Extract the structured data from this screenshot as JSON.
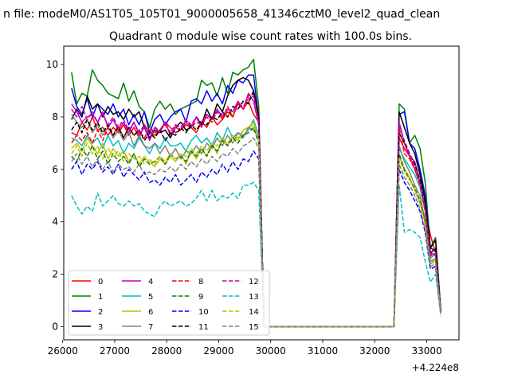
{
  "chart_data": {
    "type": "line",
    "suptitle": "n file: modeM0/AS1T05_105T01_9000005658_41346cztM0_level2_quad_clean",
    "title": "Quadrant 0 module wise count rates with 100.0s bins.",
    "xlabel": "",
    "ylabel": "",
    "x_offset_label": "+4.224e8",
    "xlim": [
      26020,
      33620
    ],
    "ylim": [
      -0.5,
      10.7
    ],
    "x_ticks": [
      {
        "value": 26000,
        "label": "26000"
      },
      {
        "value": 27000,
        "label": "27000"
      },
      {
        "value": 28000,
        "label": "28000"
      },
      {
        "value": 29000,
        "label": "29000"
      },
      {
        "value": 30000,
        "label": "30000"
      },
      {
        "value": 31000,
        "label": "31000"
      },
      {
        "value": 32000,
        "label": "32000"
      },
      {
        "value": 33000,
        "label": "33000"
      }
    ],
    "y_ticks": [
      {
        "value": 0,
        "label": "0"
      },
      {
        "value": 2,
        "label": "2"
      },
      {
        "value": 4,
        "label": "4"
      },
      {
        "value": 6,
        "label": "6"
      },
      {
        "value": 8,
        "label": "8"
      },
      {
        "value": 10,
        "label": "10"
      }
    ],
    "grid": false,
    "legend_position": "lower-left",
    "x_start": 26170,
    "x_step": 100,
    "series": [
      {
        "name": "0",
        "color": "#ff0000",
        "dash": "solid",
        "values": [
          7.4,
          7.3,
          7.8,
          7.5,
          8.0,
          7.5,
          7.6,
          7.3,
          7.6,
          7.4,
          7.7,
          7.3,
          7.6,
          7.2,
          7.7,
          7.4,
          7.3,
          7.5,
          7.8,
          7.6,
          7.4,
          7.5,
          7.7,
          7.6,
          7.4,
          7.8,
          7.6,
          8.0,
          7.7,
          7.9,
          8.2,
          8.0,
          8.5,
          8.3,
          8.6,
          8.1,
          7.8,
          0,
          0,
          0,
          0,
          0,
          0,
          0,
          0,
          0,
          0,
          0,
          0,
          0,
          0,
          0,
          0,
          0,
          0,
          0,
          0,
          0,
          0,
          0,
          0,
          0,
          0,
          7.2,
          6.8,
          6.5,
          6.0,
          5.5,
          4.5,
          3.5,
          2.8,
          0.6
        ]
      },
      {
        "name": "1",
        "color": "#008000",
        "dash": "solid",
        "values": [
          9.7,
          8.5,
          8.9,
          8.8,
          9.8,
          9.4,
          9.2,
          8.9,
          8.8,
          8.7,
          9.3,
          8.6,
          9.0,
          8.4,
          8.2,
          7.6,
          8.3,
          8.6,
          8.3,
          8.5,
          8.1,
          8.3,
          8.4,
          8.5,
          8.6,
          9.4,
          9.2,
          9.3,
          8.8,
          9.5,
          8.9,
          9.7,
          9.6,
          9.8,
          9.9,
          10.2,
          8.4,
          0,
          0,
          0,
          0,
          0,
          0,
          0,
          0,
          0,
          0,
          0,
          0,
          0,
          0,
          0,
          0,
          0,
          0,
          0,
          0,
          0,
          0,
          0,
          0,
          0,
          0,
          8.5,
          8.3,
          7.0,
          7.3,
          6.8,
          5.5,
          3.0,
          3.4,
          0.6
        ]
      },
      {
        "name": "2",
        "color": "#0000ff",
        "dash": "solid",
        "values": [
          9.1,
          8.4,
          8.1,
          8.7,
          8.0,
          8.5,
          8.3,
          8.1,
          8.5,
          8.0,
          8.3,
          7.7,
          8.1,
          7.7,
          8.2,
          7.4,
          7.9,
          8.1,
          7.7,
          8.0,
          8.2,
          8.3,
          7.8,
          8.6,
          8.7,
          8.5,
          9.0,
          8.6,
          8.9,
          8.5,
          9.2,
          8.9,
          9.4,
          9.3,
          9.6,
          9.6,
          7.9,
          0,
          0,
          0,
          0,
          0,
          0,
          0,
          0,
          0,
          0,
          0,
          0,
          0,
          0,
          0,
          0,
          0,
          0,
          0,
          0,
          0,
          0,
          0,
          0,
          0,
          0,
          8.1,
          8.2,
          7.0,
          6.8,
          6.0,
          5.0,
          3.0,
          2.9,
          0.5
        ]
      },
      {
        "name": "3",
        "color": "#000000",
        "dash": "solid",
        "values": [
          7.9,
          8.3,
          8.0,
          8.8,
          8.3,
          8.5,
          8.0,
          8.4,
          8.1,
          8.2,
          7.9,
          8.3,
          8.0,
          8.2,
          7.6,
          7.2,
          7.5,
          7.4,
          7.5,
          7.2,
          7.6,
          7.8,
          7.5,
          7.6,
          8.0,
          7.7,
          8.3,
          7.9,
          8.5,
          8.2,
          8.8,
          9.2,
          9.4,
          9.5,
          9.4,
          9.0,
          8.1,
          0,
          0,
          0,
          0,
          0,
          0,
          0,
          0,
          0,
          0,
          0,
          0,
          0,
          0,
          0,
          0,
          0,
          0,
          0,
          0,
          0,
          0,
          0,
          0,
          0,
          0,
          8.2,
          7.6,
          7.0,
          6.6,
          5.8,
          4.8,
          3.0,
          3.3,
          0.6
        ]
      },
      {
        "name": "4",
        "color": "#bf00bf",
        "dash": "solid",
        "values": [
          8.5,
          8.2,
          7.8,
          8.0,
          8.1,
          7.8,
          8.2,
          7.6,
          7.9,
          7.5,
          7.8,
          7.4,
          7.8,
          7.3,
          7.6,
          7.1,
          7.6,
          7.4,
          7.8,
          7.3,
          7.6,
          7.5,
          7.8,
          7.6,
          8.0,
          7.6,
          8.1,
          7.9,
          8.3,
          8.0,
          8.3,
          8.2,
          8.6,
          8.3,
          8.9,
          8.6,
          7.7,
          0,
          0,
          0,
          0,
          0,
          0,
          0,
          0,
          0,
          0,
          0,
          0,
          0,
          0,
          0,
          0,
          0,
          0,
          0,
          0,
          0,
          0,
          0,
          0,
          0,
          0,
          7.8,
          7.0,
          6.5,
          6.3,
          5.5,
          4.5,
          2.8,
          2.7,
          0.6
        ]
      },
      {
        "name": "5",
        "color": "#00bfbf",
        "dash": "solid",
        "values": [
          7.2,
          7.1,
          6.9,
          7.3,
          7.0,
          7.2,
          6.8,
          7.3,
          6.9,
          7.1,
          6.6,
          7.0,
          6.8,
          7.2,
          6.9,
          6.6,
          7.0,
          6.8,
          7.2,
          6.9,
          6.9,
          7.0,
          6.7,
          7.1,
          7.3,
          7.0,
          7.2,
          6.9,
          7.4,
          7.1,
          7.6,
          7.2,
          7.4,
          7.3,
          7.5,
          7.9,
          7.3,
          0,
          0,
          0,
          0,
          0,
          0,
          0,
          0,
          0,
          0,
          0,
          0,
          0,
          0,
          0,
          0,
          0,
          0,
          0,
          0,
          0,
          0,
          0,
          0,
          0,
          0,
          6.8,
          6.4,
          6.1,
          5.8,
          5.3,
          4.4,
          2.6,
          2.8,
          0.5
        ]
      },
      {
        "name": "6",
        "color": "#bfbf00",
        "dash": "solid",
        "values": [
          6.8,
          7.0,
          6.7,
          7.2,
          6.9,
          6.6,
          7.0,
          6.4,
          6.8,
          6.5,
          6.7,
          6.3,
          6.6,
          6.2,
          6.5,
          6.3,
          6.1,
          6.4,
          6.2,
          6.5,
          6.3,
          6.6,
          6.2,
          6.7,
          6.4,
          6.8,
          6.5,
          7.0,
          6.6,
          7.2,
          6.9,
          7.3,
          7.1,
          7.5,
          7.6,
          7.8,
          7.1,
          0,
          0,
          0,
          0,
          0,
          0,
          0,
          0,
          0,
          0,
          0,
          0,
          0,
          0,
          0,
          0,
          0,
          0,
          0,
          0,
          0,
          0,
          0,
          0,
          0,
          0,
          6.5,
          6.0,
          5.7,
          5.2,
          4.7,
          4.2,
          2.4,
          2.6,
          0.5
        ]
      },
      {
        "name": "7",
        "color": "#808080",
        "dash": "solid",
        "values": [
          8.1,
          7.8,
          7.6,
          7.9,
          7.4,
          7.7,
          7.3,
          7.6,
          7.2,
          7.5,
          7.1,
          7.4,
          6.9,
          7.3,
          6.9,
          6.8,
          7.0,
          6.6,
          6.9,
          6.5,
          6.8,
          6.4,
          6.7,
          6.6,
          6.9,
          6.6,
          7.0,
          6.8,
          7.2,
          6.9,
          7.3,
          7.0,
          7.4,
          7.2,
          7.6,
          7.5,
          7.2,
          0,
          0,
          0,
          0,
          0,
          0,
          0,
          0,
          0,
          0,
          0,
          0,
          0,
          0,
          0,
          0,
          0,
          0,
          0,
          0,
          0,
          0,
          0,
          0,
          0,
          0,
          6.9,
          6.3,
          5.9,
          5.4,
          5.0,
          4.0,
          2.5,
          2.6,
          0.5
        ]
      },
      {
        "name": "8",
        "color": "#ff0000",
        "dash": "dashed",
        "values": [
          7.0,
          7.3,
          7.1,
          7.4,
          7.0,
          7.5,
          7.1,
          7.6,
          7.3,
          7.7,
          7.2,
          7.6,
          7.3,
          7.5,
          7.2,
          7.6,
          7.4,
          7.5,
          7.7,
          7.4,
          7.7,
          7.5,
          7.9,
          7.6,
          7.8,
          7.7,
          8.0,
          7.8,
          8.2,
          7.9,
          8.4,
          8.0,
          8.6,
          8.3,
          8.8,
          8.9,
          7.9,
          0,
          0,
          0,
          0,
          0,
          0,
          0,
          0,
          0,
          0,
          0,
          0,
          0,
          0,
          0,
          0,
          0,
          0,
          0,
          0,
          0,
          0,
          0,
          0,
          0,
          0,
          7.6,
          6.6,
          6.4,
          6.0,
          5.4,
          4.4,
          2.7,
          2.9,
          0.6
        ]
      },
      {
        "name": "9",
        "color": "#008000",
        "dash": "dashed",
        "values": [
          6.5,
          6.3,
          6.8,
          6.5,
          6.9,
          6.4,
          6.7,
          6.2,
          6.6,
          6.3,
          6.5,
          6.2,
          6.6,
          6.1,
          6.4,
          6.2,
          6.3,
          6.5,
          6.2,
          6.6,
          6.4,
          6.5,
          6.3,
          6.7,
          6.5,
          6.8,
          6.5,
          6.9,
          6.7,
          7.1,
          6.9,
          7.2,
          7.0,
          7.3,
          7.4,
          7.6,
          7.0,
          0,
          0,
          0,
          0,
          0,
          0,
          0,
          0,
          0,
          0,
          0,
          0,
          0,
          0,
          0,
          0,
          0,
          0,
          0,
          0,
          0,
          0,
          0,
          0,
          0,
          0,
          6.6,
          6.0,
          5.6,
          5.3,
          4.8,
          4.0,
          2.4,
          2.5,
          0.5
        ]
      },
      {
        "name": "10",
        "color": "#0000ff",
        "dash": "dashed",
        "values": [
          6.0,
          6.3,
          5.8,
          6.2,
          6.0,
          6.3,
          5.9,
          6.1,
          5.8,
          6.2,
          5.7,
          6.0,
          5.8,
          5.6,
          5.9,
          5.5,
          5.6,
          5.4,
          5.7,
          5.5,
          5.8,
          5.4,
          5.6,
          5.8,
          5.5,
          5.9,
          5.7,
          6.0,
          5.8,
          6.2,
          5.9,
          6.3,
          6.0,
          6.4,
          6.3,
          6.7,
          6.4,
          0,
          0,
          0,
          0,
          0,
          0,
          0,
          0,
          0,
          0,
          0,
          0,
          0,
          0,
          0,
          0,
          0,
          0,
          0,
          0,
          0,
          0,
          0,
          0,
          0,
          0,
          6.0,
          5.5,
          5.2,
          4.8,
          4.4,
          3.6,
          2.2,
          2.3,
          0.5
        ]
      },
      {
        "name": "11",
        "color": "#000000",
        "dash": "dashed",
        "values": [
          7.5,
          7.8,
          7.4,
          7.9,
          7.5,
          7.8,
          7.4,
          7.7,
          7.3,
          7.6,
          7.2,
          7.6,
          7.3,
          7.5,
          7.1,
          7.4,
          7.2,
          7.5,
          7.1,
          7.4,
          7.3,
          7.6,
          7.4,
          7.7,
          7.5,
          7.8,
          7.7,
          8.0,
          7.9,
          8.2,
          8.0,
          8.4,
          8.3,
          8.6,
          8.5,
          9.0,
          8.0,
          0,
          0,
          0,
          0,
          0,
          0,
          0,
          0,
          0,
          0,
          0,
          0,
          0,
          0,
          0,
          0,
          0,
          0,
          0,
          0,
          0,
          0,
          0,
          0,
          0,
          0,
          7.4,
          7.0,
          6.6,
          6.2,
          5.6,
          4.6,
          2.8,
          3.0,
          0.6
        ]
      },
      {
        "name": "12",
        "color": "#bf00bf",
        "dash": "dashed",
        "values": [
          8.3,
          8.0,
          8.4,
          7.9,
          8.2,
          7.8,
          8.1,
          7.7,
          8.0,
          7.6,
          7.9,
          7.5,
          7.8,
          7.4,
          7.7,
          7.3,
          7.6,
          7.5,
          7.8,
          7.4,
          7.7,
          7.6,
          7.9,
          7.7,
          8.0,
          7.8,
          8.1,
          7.9,
          8.2,
          8.1,
          8.3,
          8.2,
          8.5,
          8.4,
          8.7,
          8.8,
          7.8,
          0,
          0,
          0,
          0,
          0,
          0,
          0,
          0,
          0,
          0,
          0,
          0,
          0,
          0,
          0,
          0,
          0,
          0,
          0,
          0,
          0,
          0,
          0,
          0,
          0,
          0,
          7.7,
          7.1,
          6.6,
          6.1,
          5.5,
          4.5,
          2.7,
          2.8,
          0.6
        ]
      },
      {
        "name": "13",
        "color": "#00bfbf",
        "dash": "dashed",
        "values": [
          5.0,
          4.6,
          4.3,
          4.6,
          4.4,
          5.1,
          4.6,
          4.8,
          5.0,
          4.7,
          4.6,
          4.8,
          4.6,
          4.7,
          4.4,
          4.3,
          4.2,
          4.6,
          4.8,
          4.6,
          4.7,
          4.8,
          4.6,
          4.7,
          4.9,
          5.2,
          4.8,
          5.2,
          4.8,
          5.0,
          4.9,
          5.1,
          4.9,
          5.4,
          5.4,
          5.5,
          5.2,
          0,
          0,
          0,
          0,
          0,
          0,
          0,
          0,
          0,
          0,
          0,
          0,
          0,
          0,
          0,
          0,
          0,
          0,
          0,
          0,
          0,
          0,
          0,
          0,
          0,
          0,
          5.4,
          3.6,
          3.7,
          3.6,
          3.4,
          2.5,
          1.7,
          2.0,
          0.4
        ]
      },
      {
        "name": "14",
        "color": "#bfbf00",
        "dash": "dashed",
        "values": [
          6.6,
          6.9,
          6.5,
          7.0,
          6.6,
          6.9,
          6.4,
          6.8,
          6.5,
          6.7,
          6.3,
          6.6,
          6.4,
          6.5,
          6.2,
          6.4,
          6.2,
          6.5,
          6.3,
          6.6,
          6.4,
          6.6,
          6.5,
          6.8,
          6.6,
          6.9,
          6.7,
          7.0,
          6.9,
          7.2,
          7.0,
          7.3,
          7.2,
          7.5,
          7.6,
          7.7,
          7.1,
          0,
          0,
          0,
          0,
          0,
          0,
          0,
          0,
          0,
          0,
          0,
          0,
          0,
          0,
          0,
          0,
          0,
          0,
          0,
          0,
          0,
          0,
          0,
          0,
          0,
          0,
          6.4,
          5.9,
          5.6,
          5.2,
          4.7,
          3.9,
          2.4,
          2.5,
          0.5
        ]
      },
      {
        "name": "15",
        "color": "#808080",
        "dash": "dashed",
        "values": [
          6.3,
          6.6,
          6.2,
          6.5,
          6.1,
          6.4,
          6.0,
          6.3,
          5.9,
          6.2,
          6.0,
          6.1,
          5.9,
          6.2,
          5.8,
          5.9,
          5.8,
          6.0,
          5.9,
          6.1,
          5.9,
          6.2,
          6.0,
          6.3,
          6.1,
          6.4,
          6.2,
          6.5,
          6.3,
          6.6,
          6.5,
          6.8,
          6.6,
          6.9,
          7.0,
          7.2,
          6.8,
          0,
          0,
          0,
          0,
          0,
          0,
          0,
          0,
          0,
          0,
          0,
          0,
          0,
          0,
          0,
          0,
          0,
          0,
          0,
          0,
          0,
          0,
          0,
          0,
          0,
          0,
          6.2,
          5.7,
          5.4,
          5.0,
          4.5,
          3.7,
          2.3,
          2.4,
          0.5
        ]
      }
    ]
  }
}
